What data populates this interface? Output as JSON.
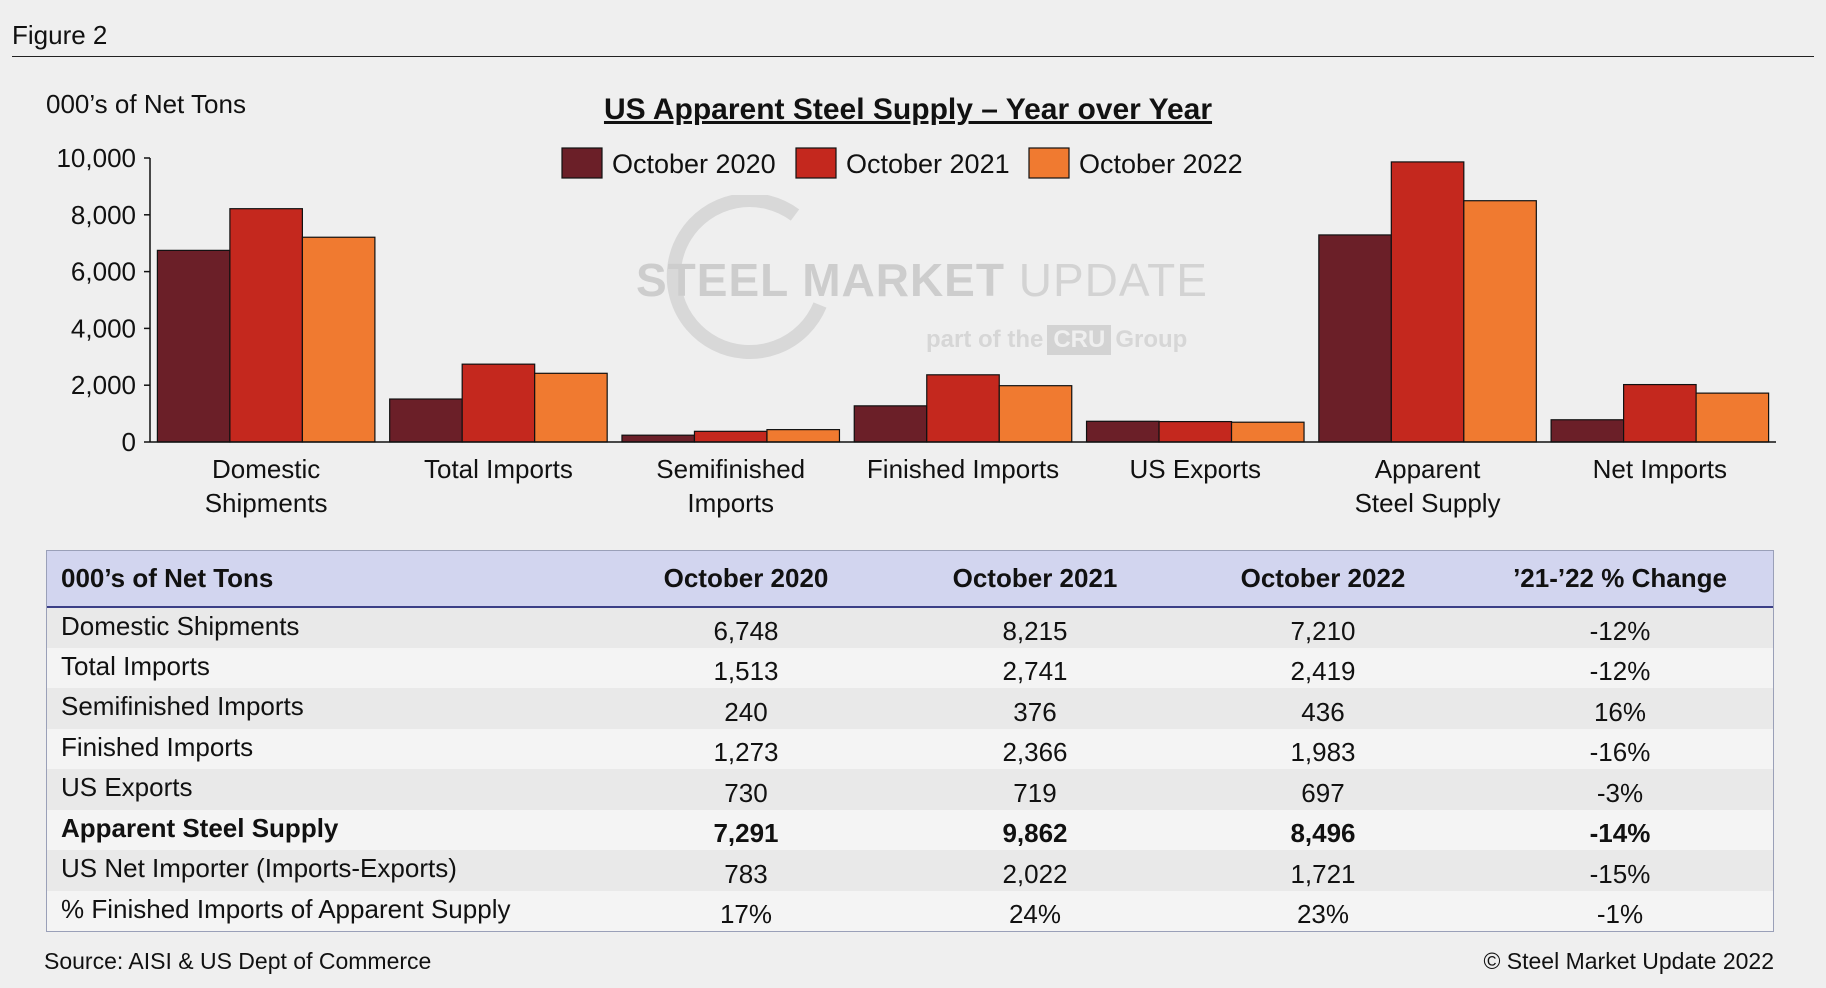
{
  "figure_label": "Figure 2",
  "units_label": "000’s of Net Tons",
  "source": "Source:  AISI & US Dept of Commerce",
  "copyright": "© Steel Market Update 2022",
  "watermark": {
    "brand_bold": "STEEL MARKET",
    "brand_light": " UPDATE",
    "sub_prefix": "part of the",
    "sub_box": "CRU",
    "sub_suffix": "Group"
  },
  "colors": {
    "oct2020": "#6b1f28",
    "oct2021": "#c4281e",
    "oct2022": "#f07a30"
  },
  "chart_data": {
    "type": "bar",
    "title": "US Apparent Steel Supply – Year over Year",
    "ylabel": "000’s of Net Tons",
    "ylim": [
      0,
      10000
    ],
    "yticks": [
      0,
      2000,
      4000,
      6000,
      8000,
      10000
    ],
    "ytick_labels": [
      "0",
      "2,000",
      "4,000",
      "6,000",
      "8,000",
      "10,000"
    ],
    "categories": [
      [
        "Domestic",
        "Shipments"
      ],
      [
        "Total Imports"
      ],
      [
        "Semifinished",
        "Imports"
      ],
      [
        "Finished Imports"
      ],
      [
        "US Exports"
      ],
      [
        "Apparent",
        "Steel Supply"
      ],
      [
        "Net Imports"
      ]
    ],
    "series": [
      {
        "name": "October 2020",
        "color": "#6b1f28",
        "values": [
          6748,
          1513,
          240,
          1273,
          730,
          7291,
          783
        ]
      },
      {
        "name": "October 2021",
        "color": "#c4281e",
        "values": [
          8215,
          2741,
          376,
          2366,
          719,
          9862,
          2022
        ]
      },
      {
        "name": "October 2022",
        "color": "#f07a30",
        "values": [
          7210,
          2419,
          436,
          1983,
          697,
          8496,
          1721
        ]
      }
    ],
    "legend": "top-center"
  },
  "table": {
    "headers": [
      "000’s of Net Tons",
      "October 2020",
      "October 2021",
      "October 2022",
      "’21-’22 % Change"
    ],
    "rows": [
      {
        "label": "Domestic Shipments",
        "v2020": "6,748",
        "v2021": "8,215",
        "v2022": "7,210",
        "change": "-12%"
      },
      {
        "label": "Total Imports",
        "v2020": "1,513",
        "v2021": "2,741",
        "v2022": "2,419",
        "change": "-12%"
      },
      {
        "label": "Semifinished Imports",
        "v2020": "240",
        "v2021": "376",
        "v2022": "436",
        "change": "16%"
      },
      {
        "label": "Finished Imports",
        "v2020": "1,273",
        "v2021": "2,366",
        "v2022": "1,983",
        "change": "-16%"
      },
      {
        "label": "US Exports",
        "v2020": "730",
        "v2021": "719",
        "v2022": "697",
        "change": "-3%"
      },
      {
        "label": "Apparent Steel Supply",
        "v2020": "7,291",
        "v2021": "9,862",
        "v2022": "8,496",
        "change": "-14%"
      },
      {
        "label": "US Net Importer (Imports-Exports)",
        "v2020": "783",
        "v2021": "2,022",
        "v2022": "1,721",
        "change": "-15%"
      },
      {
        "label": "% Finished Imports of Apparent Supply",
        "v2020": "17%",
        "v2021": "24%",
        "v2022": "23%",
        "change": "-1%"
      }
    ]
  }
}
